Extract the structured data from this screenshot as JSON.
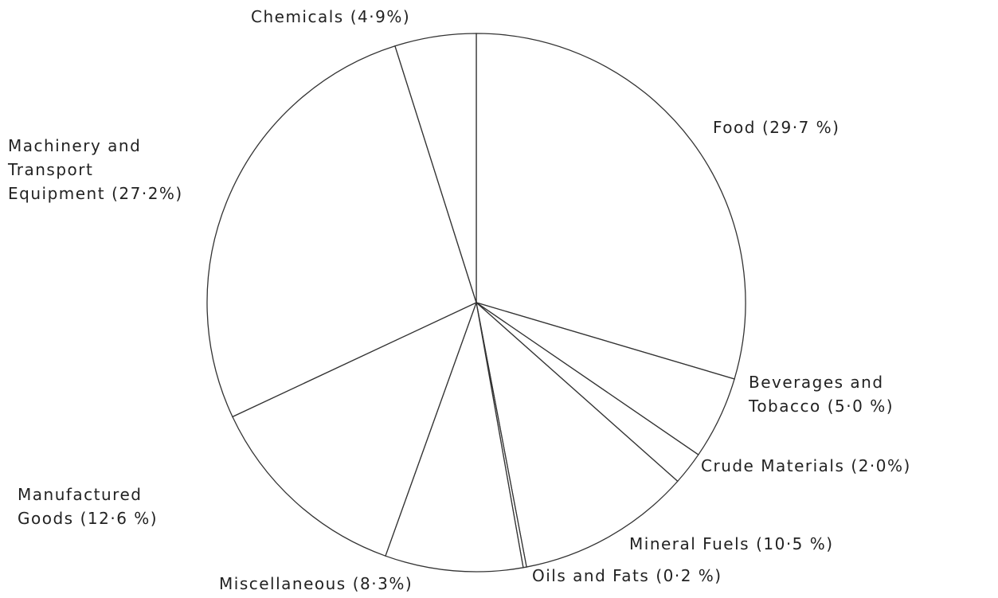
{
  "chart_data": {
    "type": "pie",
    "categories": [
      "Food",
      "Beverages and\nTobacco",
      "Crude Materials",
      "Mineral Fuels",
      "Oils and Fats",
      "Miscellaneous",
      "Manufactured\nGoods",
      "Machinery and\nTransport\nEquipment",
      "Chemicals"
    ],
    "values": [
      29.7,
      5.0,
      2.0,
      10.5,
      0.2,
      8.3,
      12.6,
      27.2,
      4.9
    ],
    "value_labels": [
      "(29·7 %)",
      "(5·0 %)",
      "(2·0%)",
      "(10·5 %)",
      "(0·2 %)",
      "(8·3%)",
      "(12·6 %)",
      "(27·2%)",
      "(4·9%)"
    ],
    "color": "#ffffff"
  }
}
